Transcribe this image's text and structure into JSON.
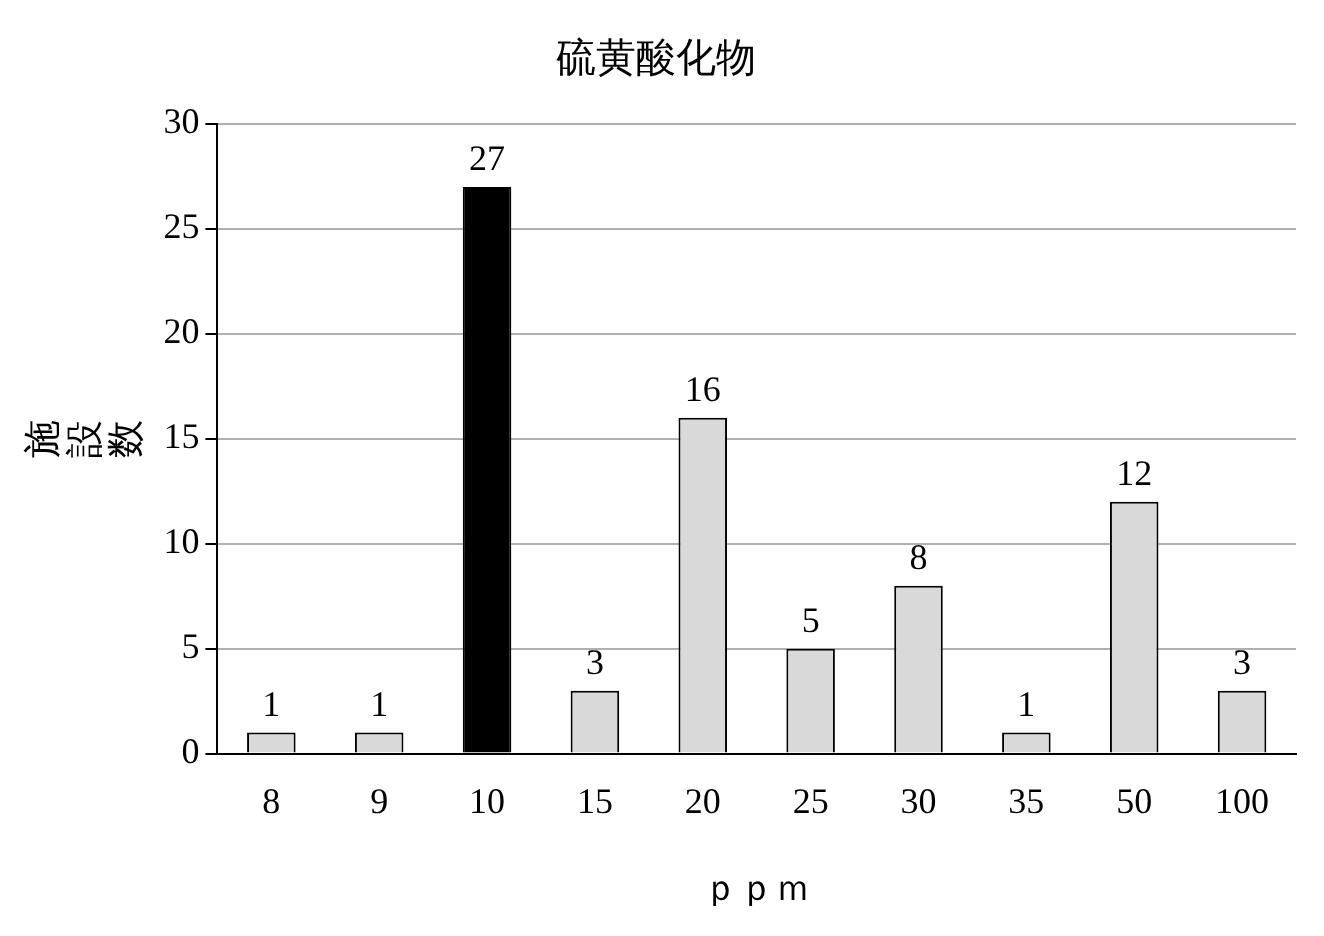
{
  "chart_data": {
    "type": "bar",
    "title": "硫黄酸化物",
    "xlabel": "ｐｐｍ",
    "ylabel": "施設数",
    "categories": [
      "8",
      "9",
      "10",
      "15",
      "20",
      "25",
      "30",
      "35",
      "50",
      "100"
    ],
    "values": [
      1,
      1,
      27,
      3,
      16,
      5,
      8,
      1,
      12,
      3
    ],
    "colors": [
      "#d9d9d9",
      "#d9d9d9",
      "#000000",
      "#d9d9d9",
      "#d9d9d9",
      "#d9d9d9",
      "#d9d9d9",
      "#d9d9d9",
      "#d9d9d9",
      "#d9d9d9"
    ],
    "ylim": [
      0,
      30
    ],
    "yticks": [
      0,
      5,
      10,
      15,
      20,
      25,
      30
    ],
    "grid": "y",
    "legend": false,
    "data_labels": true
  }
}
